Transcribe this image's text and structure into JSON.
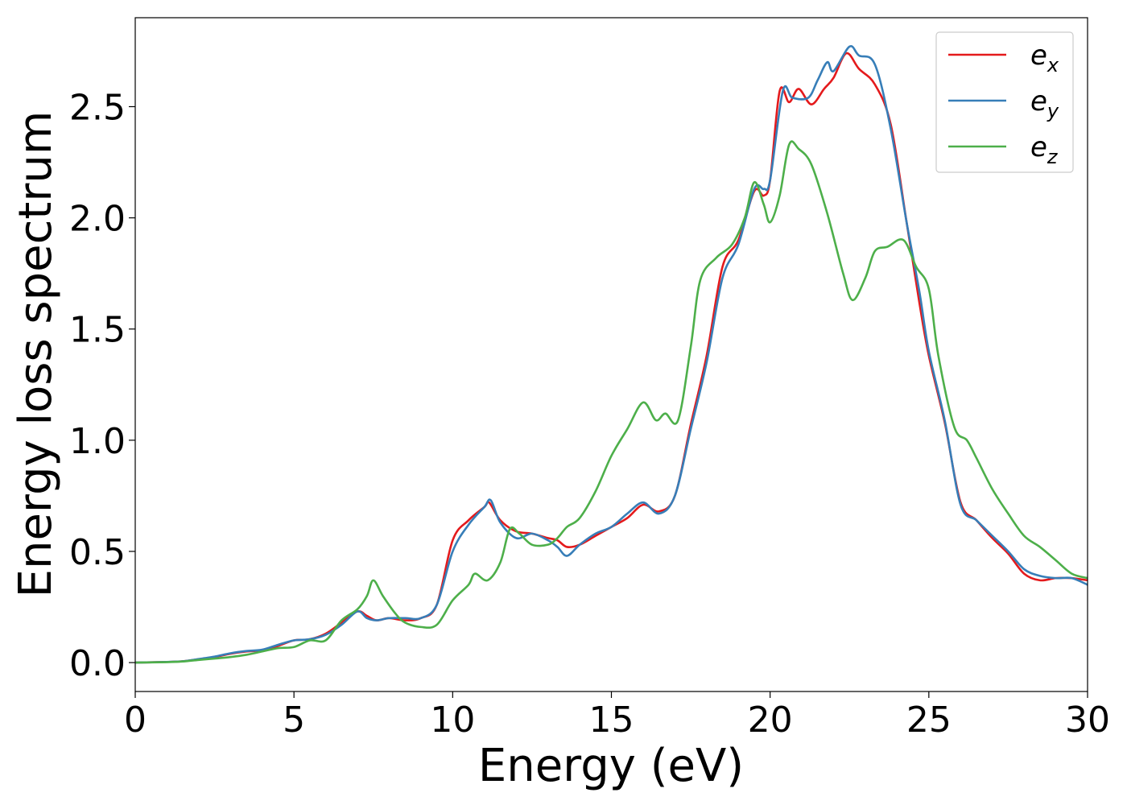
{
  "chart_data": {
    "type": "line",
    "title": "",
    "xlabel": "Energy (eV)",
    "ylabel": "Energy loss spectrum",
    "xlim": [
      0,
      30
    ],
    "ylim": [
      -0.13,
      2.9
    ],
    "xticks": [
      0,
      5,
      10,
      15,
      20,
      25,
      30
    ],
    "xtick_labels": [
      "0",
      "5",
      "10",
      "15",
      "20",
      "25",
      "30"
    ],
    "yticks": [
      0.0,
      0.5,
      1.0,
      1.5,
      2.0,
      2.5
    ],
    "ytick_labels": [
      "0.0",
      "0.5",
      "1.0",
      "1.5",
      "2.0",
      "2.5"
    ],
    "grid": false,
    "legend_position": "top-right",
    "series": [
      {
        "name": "e_x",
        "label_base": "e",
        "label_sub": "x",
        "color": "#e41a1c",
        "points": [
          [
            0,
            0.0
          ],
          [
            1,
            0.003
          ],
          [
            1.5,
            0.006
          ],
          [
            2,
            0.015
          ],
          [
            2.5,
            0.025
          ],
          [
            3,
            0.04
          ],
          [
            3.5,
            0.05
          ],
          [
            4,
            0.055
          ],
          [
            4.5,
            0.075
          ],
          [
            5,
            0.1
          ],
          [
            5.5,
            0.105
          ],
          [
            6,
            0.13
          ],
          [
            6.5,
            0.18
          ],
          [
            7,
            0.23
          ],
          [
            7.3,
            0.21
          ],
          [
            7.6,
            0.19
          ],
          [
            8,
            0.2
          ],
          [
            8.5,
            0.19
          ],
          [
            9,
            0.2
          ],
          [
            9.5,
            0.26
          ],
          [
            10,
            0.55
          ],
          [
            10.5,
            0.64
          ],
          [
            11,
            0.7
          ],
          [
            11.15,
            0.72
          ],
          [
            11.5,
            0.64
          ],
          [
            12,
            0.59
          ],
          [
            12.5,
            0.58
          ],
          [
            13,
            0.56
          ],
          [
            13.3,
            0.55
          ],
          [
            13.6,
            0.52
          ],
          [
            14,
            0.53
          ],
          [
            14.5,
            0.57
          ],
          [
            15,
            0.61
          ],
          [
            15.5,
            0.65
          ],
          [
            16,
            0.71
          ],
          [
            16.5,
            0.68
          ],
          [
            17,
            0.75
          ],
          [
            17.5,
            1.07
          ],
          [
            18,
            1.38
          ],
          [
            18.5,
            1.78
          ],
          [
            19,
            1.9
          ],
          [
            19.5,
            2.12
          ],
          [
            19.8,
            2.1
          ],
          [
            20,
            2.17
          ],
          [
            20.3,
            2.57
          ],
          [
            20.6,
            2.52
          ],
          [
            20.9,
            2.58
          ],
          [
            21.3,
            2.51
          ],
          [
            21.7,
            2.58
          ],
          [
            22,
            2.63
          ],
          [
            22.4,
            2.74
          ],
          [
            22.8,
            2.67
          ],
          [
            23.3,
            2.6
          ],
          [
            23.8,
            2.42
          ],
          [
            24.3,
            1.98
          ],
          [
            24.7,
            1.62
          ],
          [
            25,
            1.38
          ],
          [
            25.5,
            1.08
          ],
          [
            26,
            0.72
          ],
          [
            26.5,
            0.64
          ],
          [
            27,
            0.56
          ],
          [
            27.5,
            0.49
          ],
          [
            28,
            0.4
          ],
          [
            28.5,
            0.37
          ],
          [
            29,
            0.38
          ],
          [
            29.5,
            0.38
          ],
          [
            30,
            0.37
          ]
        ]
      },
      {
        "name": "e_y",
        "label_base": "e",
        "label_sub": "y",
        "color": "#377eb8",
        "points": [
          [
            0,
            0.0
          ],
          [
            1,
            0.003
          ],
          [
            1.5,
            0.006
          ],
          [
            2,
            0.016
          ],
          [
            2.5,
            0.027
          ],
          [
            3,
            0.042
          ],
          [
            3.5,
            0.052
          ],
          [
            4,
            0.058
          ],
          [
            4.5,
            0.08
          ],
          [
            5,
            0.1
          ],
          [
            5.5,
            0.105
          ],
          [
            6,
            0.125
          ],
          [
            6.5,
            0.17
          ],
          [
            7,
            0.23
          ],
          [
            7.3,
            0.2
          ],
          [
            7.6,
            0.19
          ],
          [
            8,
            0.2
          ],
          [
            8.5,
            0.2
          ],
          [
            9,
            0.2
          ],
          [
            9.5,
            0.26
          ],
          [
            10,
            0.5
          ],
          [
            10.5,
            0.62
          ],
          [
            11,
            0.7
          ],
          [
            11.2,
            0.73
          ],
          [
            11.5,
            0.63
          ],
          [
            12,
            0.56
          ],
          [
            12.5,
            0.58
          ],
          [
            13,
            0.55
          ],
          [
            13.3,
            0.52
          ],
          [
            13.6,
            0.48
          ],
          [
            14,
            0.53
          ],
          [
            14.5,
            0.58
          ],
          [
            15,
            0.61
          ],
          [
            15.5,
            0.67
          ],
          [
            16,
            0.72
          ],
          [
            16.5,
            0.67
          ],
          [
            17,
            0.75
          ],
          [
            17.5,
            1.05
          ],
          [
            18,
            1.35
          ],
          [
            18.5,
            1.73
          ],
          [
            19,
            1.88
          ],
          [
            19.5,
            2.13
          ],
          [
            19.8,
            2.13
          ],
          [
            20,
            2.17
          ],
          [
            20.4,
            2.57
          ],
          [
            20.7,
            2.54
          ],
          [
            21.2,
            2.54
          ],
          [
            21.5,
            2.62
          ],
          [
            21.8,
            2.7
          ],
          [
            22,
            2.66
          ],
          [
            22.5,
            2.77
          ],
          [
            22.8,
            2.73
          ],
          [
            23.3,
            2.69
          ],
          [
            23.8,
            2.4
          ],
          [
            24.3,
            1.98
          ],
          [
            24.7,
            1.67
          ],
          [
            25,
            1.4
          ],
          [
            25.5,
            1.09
          ],
          [
            26,
            0.71
          ],
          [
            26.5,
            0.64
          ],
          [
            27,
            0.57
          ],
          [
            27.5,
            0.5
          ],
          [
            28,
            0.42
          ],
          [
            28.5,
            0.39
          ],
          [
            29,
            0.38
          ],
          [
            29.5,
            0.38
          ],
          [
            30,
            0.35
          ]
        ]
      },
      {
        "name": "e_z",
        "label_base": "e",
        "label_sub": "z",
        "color": "#4daf4a",
        "points": [
          [
            0,
            0.0
          ],
          [
            1,
            0.002
          ],
          [
            1.5,
            0.005
          ],
          [
            2,
            0.012
          ],
          [
            2.5,
            0.018
          ],
          [
            3,
            0.025
          ],
          [
            3.5,
            0.035
          ],
          [
            4,
            0.05
          ],
          [
            4.5,
            0.065
          ],
          [
            5,
            0.07
          ],
          [
            5.5,
            0.1
          ],
          [
            6,
            0.1
          ],
          [
            6.5,
            0.19
          ],
          [
            7,
            0.24
          ],
          [
            7.3,
            0.3
          ],
          [
            7.5,
            0.37
          ],
          [
            7.8,
            0.3
          ],
          [
            8.2,
            0.22
          ],
          [
            8.5,
            0.18
          ],
          [
            9,
            0.16
          ],
          [
            9.5,
            0.17
          ],
          [
            10,
            0.28
          ],
          [
            10.5,
            0.35
          ],
          [
            10.7,
            0.4
          ],
          [
            11.1,
            0.37
          ],
          [
            11.5,
            0.45
          ],
          [
            11.8,
            0.6
          ],
          [
            12.1,
            0.58
          ],
          [
            12.5,
            0.53
          ],
          [
            13,
            0.53
          ],
          [
            13.3,
            0.56
          ],
          [
            13.6,
            0.61
          ],
          [
            14,
            0.65
          ],
          [
            14.5,
            0.77
          ],
          [
            15,
            0.93
          ],
          [
            15.5,
            1.05
          ],
          [
            16,
            1.17
          ],
          [
            16.4,
            1.09
          ],
          [
            16.7,
            1.12
          ],
          [
            17.1,
            1.09
          ],
          [
            17.5,
            1.42
          ],
          [
            17.8,
            1.72
          ],
          [
            18.3,
            1.82
          ],
          [
            18.8,
            1.88
          ],
          [
            19.2,
            2.0
          ],
          [
            19.5,
            2.16
          ],
          [
            19.8,
            2.06
          ],
          [
            20,
            1.98
          ],
          [
            20.3,
            2.1
          ],
          [
            20.6,
            2.33
          ],
          [
            20.9,
            2.31
          ],
          [
            21.3,
            2.24
          ],
          [
            21.8,
            2.02
          ],
          [
            22.3,
            1.75
          ],
          [
            22.6,
            1.63
          ],
          [
            23,
            1.73
          ],
          [
            23.3,
            1.85
          ],
          [
            23.7,
            1.87
          ],
          [
            24.2,
            1.9
          ],
          [
            24.6,
            1.78
          ],
          [
            25,
            1.68
          ],
          [
            25.3,
            1.38
          ],
          [
            25.8,
            1.06
          ],
          [
            26.2,
            1.0
          ],
          [
            26.5,
            0.92
          ],
          [
            27,
            0.78
          ],
          [
            27.5,
            0.67
          ],
          [
            28,
            0.57
          ],
          [
            28.5,
            0.52
          ],
          [
            29,
            0.46
          ],
          [
            29.5,
            0.4
          ],
          [
            30,
            0.38
          ]
        ]
      }
    ]
  }
}
